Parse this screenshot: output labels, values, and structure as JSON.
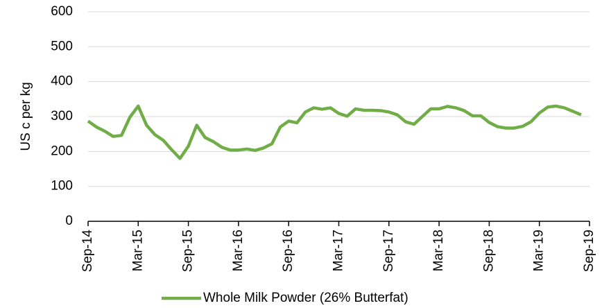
{
  "chart_data": {
    "type": "line",
    "y_label": "US c per kg",
    "categories": [
      "Sep-14",
      null,
      null,
      null,
      null,
      null,
      "Mar-15",
      null,
      null,
      null,
      null,
      null,
      "Sep-15",
      null,
      null,
      null,
      null,
      null,
      "Mar-16",
      null,
      null,
      null,
      null,
      null,
      "Sep-16",
      null,
      null,
      null,
      null,
      null,
      "Mar-17",
      null,
      null,
      null,
      null,
      null,
      "Sep-17",
      null,
      null,
      null,
      null,
      null,
      "Mar-18",
      null,
      null,
      null,
      null,
      null,
      "Sep-18",
      null,
      null,
      null,
      null,
      null,
      "Mar-19",
      null,
      null,
      null,
      null,
      null,
      "Sep-19"
    ],
    "series": [
      {
        "name": "Whole Milk Powder (26% Butterfat)",
        "color": "#70ad47",
        "values": [
          287,
          270,
          258,
          243,
          246,
          298,
          330,
          275,
          248,
          232,
          205,
          180,
          215,
          275,
          240,
          228,
          212,
          204,
          204,
          207,
          203,
          210,
          222,
          270,
          287,
          282,
          313,
          325,
          321,
          325,
          309,
          301,
          322,
          318,
          318,
          317,
          313,
          305,
          285,
          278,
          300,
          322,
          322,
          329,
          325,
          317,
          302,
          302,
          283,
          271,
          267,
          267,
          272,
          285,
          310,
          327,
          330,
          325,
          315,
          305,
          null
        ]
      }
    ],
    "ylim": [
      0,
      600
    ],
    "yticks": [
      0,
      100,
      200,
      300,
      400,
      500,
      600
    ],
    "grid": true,
    "legend": "bottom"
  }
}
